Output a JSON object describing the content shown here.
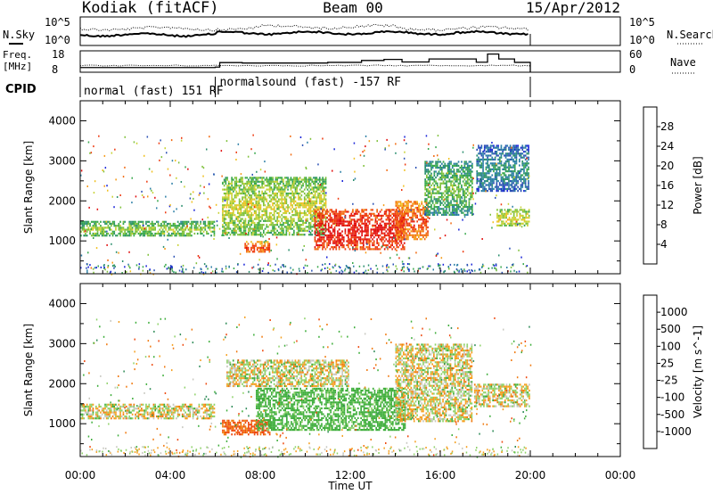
{
  "header": {
    "radar": "Kodiak (fitACF)",
    "beam": "Beam 00",
    "date": "15/Apr/2012"
  },
  "strips": {
    "nsky_label": "N.Sky",
    "nsearch_label": "N.Search",
    "counts_ticks": [
      "10^5",
      "10^0"
    ],
    "freq_label_1": "Freq.",
    "freq_label_2": "[MHz]",
    "freq_ticks": [
      "18",
      "8"
    ],
    "nave_label": "Nave",
    "nave_ticks": [
      "60",
      "0"
    ],
    "cpid_label": "CPID",
    "cpid_segments": [
      {
        "label": "normal (fast) 151 RF",
        "start": 0,
        "end": 6
      },
      {
        "label": "normalsound (fast) -157 RF",
        "start": 6,
        "end": 20
      }
    ],
    "frequency_mhz": [
      {
        "t": 0,
        "f": 10.2
      },
      {
        "t": 6,
        "f": 10.4
      },
      {
        "t": 6.2,
        "f": 12.5
      },
      {
        "t": 7.2,
        "f": 12.3
      },
      {
        "t": 11,
        "f": 12.6
      },
      {
        "t": 12.5,
        "f": 13.5
      },
      {
        "t": 13.5,
        "f": 14
      },
      {
        "t": 14.3,
        "f": 12.8
      },
      {
        "t": 15.5,
        "f": 14.2
      },
      {
        "t": 17.6,
        "f": 12.7
      },
      {
        "t": 18.1,
        "f": 16.5
      },
      {
        "t": 18.6,
        "f": 14.2
      },
      {
        "t": 19.3,
        "f": 12.6
      },
      {
        "t": 20,
        "f": 12
      }
    ]
  },
  "chart_data": [
    {
      "type": "heatmap",
      "title": "Power",
      "xlabel": "",
      "ylabel": "Slant Range [km]",
      "xlim_hours": [
        0,
        24
      ],
      "x_tick_labels": [
        "00:00",
        "04:00",
        "08:00",
        "12:00",
        "16:00",
        "20:00",
        "00:00"
      ],
      "ylim_km": [
        180,
        4500
      ],
      "y_ticks": [
        1000,
        2000,
        3000,
        4000
      ],
      "colorbar_label": "Power [dB]",
      "colorbar_ticks": [
        28,
        24,
        20,
        16,
        12,
        8,
        4
      ],
      "colorbar_range": [
        0,
        30
      ],
      "colorbar_colors": [
        "#1a25d8",
        "#2a50b4",
        "#2c7fa6",
        "#2b8f6e",
        "#38a84c",
        "#7fc13b",
        "#c8d235",
        "#f0c020",
        "#f59b18",
        "#f26a10",
        "#ee3a10",
        "#e11010"
      ],
      "regions": [
        {
          "t0": 0.0,
          "t1": 6.0,
          "r0": 1100,
          "r1": 1500,
          "value": 11
        },
        {
          "t0": 6.3,
          "t1": 11.0,
          "r0": 1100,
          "r1": 2600,
          "value": 13
        },
        {
          "t0": 7.3,
          "t1": 8.5,
          "r0": 700,
          "r1": 1000,
          "value": 22
        },
        {
          "t0": 10.4,
          "t1": 14.5,
          "r0": 750,
          "r1": 1800,
          "value": 26
        },
        {
          "t0": 14.0,
          "t1": 15.5,
          "r0": 1000,
          "r1": 2000,
          "value": 22
        },
        {
          "t0": 15.3,
          "t1": 17.5,
          "r0": 1600,
          "r1": 3000,
          "value": 9
        },
        {
          "t0": 17.6,
          "t1": 20.0,
          "r0": 2200,
          "r1": 3400,
          "value": 5
        },
        {
          "t0": 18.5,
          "t1": 20.0,
          "r0": 1350,
          "r1": 1800,
          "value": 14
        }
      ]
    },
    {
      "type": "heatmap",
      "title": "Velocity",
      "xlabel": "Time UT",
      "ylabel": "Slant Range [km]",
      "xlim_hours": [
        0,
        24
      ],
      "x_tick_labels": [
        "00:00",
        "04:00",
        "08:00",
        "12:00",
        "16:00",
        "20:00",
        "00:00"
      ],
      "ylim_km": [
        180,
        4500
      ],
      "y_ticks": [
        1000,
        2000,
        3000,
        4000
      ],
      "colorbar_label": "Velocity [m s^-1]",
      "colorbar_ticks": [
        "1000",
        "500",
        "100",
        "25",
        "-25",
        "-100",
        "-500",
        "-1000"
      ],
      "colorbar_colors": [
        "#1f2fc8",
        "#2d6aa8",
        "#2e8b57",
        "#3fae3c",
        "#8fd26a",
        "#c8c8c0",
        "#c8c8c0",
        "#f5a020",
        "#f07a10",
        "#ee4a10",
        "#e11010"
      ],
      "regions": [
        {
          "t0": 0.0,
          "t1": 6.0,
          "r0": 1100,
          "r1": 1500,
          "value": 0
        },
        {
          "t0": 6.3,
          "t1": 8.5,
          "r0": 700,
          "r1": 1100,
          "value": -300
        },
        {
          "t0": 7.8,
          "t1": 14.5,
          "r0": 800,
          "r1": 1900,
          "value": 180
        },
        {
          "t0": 6.5,
          "t1": 12.0,
          "r0": 1900,
          "r1": 2600,
          "value": 0
        },
        {
          "t0": 14.0,
          "t1": 17.5,
          "r0": 1000,
          "r1": 3000,
          "value": 0
        },
        {
          "t0": 17.5,
          "t1": 20.0,
          "r0": 1400,
          "r1": 2000,
          "value": 0
        }
      ]
    }
  ]
}
